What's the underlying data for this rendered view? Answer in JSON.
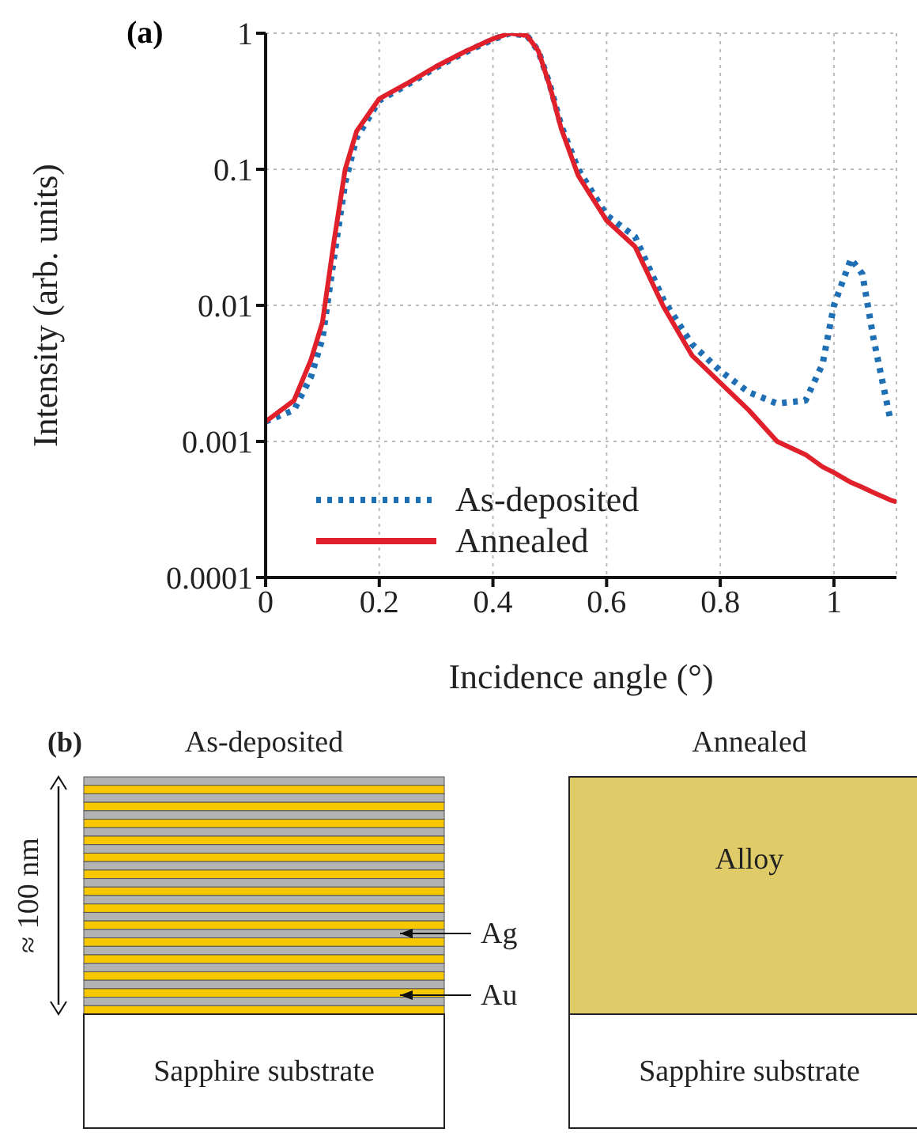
{
  "chart_data": [
    {
      "type": "line",
      "title": "(a)",
      "xlabel": "Incidence angle (°)",
      "ylabel": "Intensity (arb. units)",
      "log": "y",
      "grid": true,
      "legend": "bottom left",
      "marker": "none",
      "xlim": [
        0,
        1.11
      ],
      "xticks": [
        0,
        0.2,
        0.4,
        0.6,
        0.8,
        1
      ],
      "ylim": [
        0.0001,
        1
      ],
      "yticks": [
        0.0001,
        0.001,
        0.01,
        0.1,
        1
      ],
      "x": [
        0,
        0.05,
        0.08,
        0.1,
        0.12,
        0.14,
        0.16,
        0.2,
        0.25,
        0.3,
        0.35,
        0.4,
        0.43,
        0.46,
        0.48,
        0.5,
        0.52,
        0.55,
        0.6,
        0.65,
        0.7,
        0.75,
        0.8,
        0.85,
        0.9,
        0.95,
        0.98,
        1,
        1.03,
        1.05,
        1.07,
        1.1,
        1.11
      ],
      "series": [
        {
          "name": "As-deposited",
          "color": "#1f6fb4",
          "line_style": "dotted",
          "values": [
            0.0014,
            0.0017,
            0.003,
            0.0057,
            0.022,
            0.08,
            0.17,
            0.32,
            0.42,
            0.56,
            0.72,
            0.9,
            1,
            0.96,
            0.74,
            0.42,
            0.21,
            0.1,
            0.046,
            0.032,
            0.011,
            0.0052,
            0.0033,
            0.0023,
            0.0019,
            0.002,
            0.0037,
            0.01,
            0.022,
            0.017,
            0.0056,
            0.0014,
            null
          ]
        },
        {
          "name": "Annealed",
          "color": "#e0202a",
          "line_style": "solid",
          "values": [
            0.0014,
            0.002,
            0.004,
            0.0075,
            0.029,
            0.1,
            0.19,
            0.33,
            0.43,
            0.57,
            0.73,
            0.91,
            1,
            0.96,
            0.74,
            0.41,
            0.2,
            0.09,
            0.042,
            0.027,
            0.0098,
            0.0043,
            0.0027,
            0.0017,
            0.001,
            0.0008,
            0.00065,
            0.00059,
            0.0005,
            0.00046,
            0.00042,
            0.00037,
            0.00036
          ]
        }
      ]
    },
    {
      "type": "other",
      "annotations": [
        "(b)",
        "As-deposited",
        "Annealed",
        "≈ 100 nm",
        "Ag",
        "Au",
        "Alloy",
        "Sapphire substrate",
        "Sapphire substrate"
      ]
    }
  ]
}
